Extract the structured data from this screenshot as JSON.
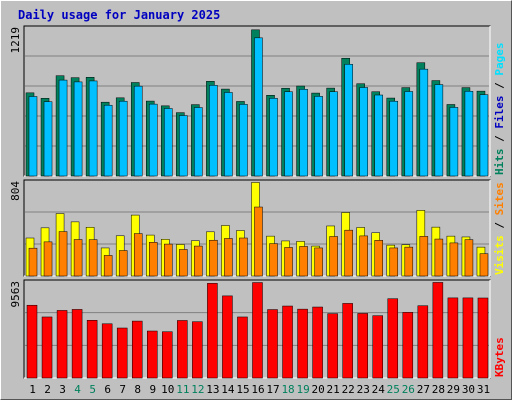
{
  "title": "Daily usage for January 2025",
  "colors": {
    "background": "#c0c0c0",
    "hits": "#00805c",
    "files": "#00c0ff",
    "pages": "#00e0ff",
    "visits": "#ffff00",
    "sites": "#ff8000",
    "kbytes": "#ff0000",
    "weekday_label": "#000000",
    "weekend_label": "#00805c"
  },
  "chart_data": [
    {
      "type": "bar",
      "panel": "hits-files-pages",
      "ymax_label": "1219",
      "ylim": [
        0,
        1219
      ],
      "right_labels": [
        {
          "text": "Hits",
          "color": "#00805c"
        },
        {
          "text": "/",
          "color": "#000000"
        },
        {
          "text": "Files",
          "color": "#0000c0"
        },
        {
          "text": "/",
          "color": "#000000"
        },
        {
          "text": "Pages",
          "color": "#00e0ff"
        }
      ],
      "categories": [
        "1",
        "2",
        "3",
        "4",
        "5",
        "6",
        "7",
        "8",
        "9",
        "10",
        "11",
        "12",
        "13",
        "14",
        "15",
        "16",
        "17",
        "18",
        "19",
        "20",
        "21",
        "22",
        "23",
        "24",
        "25",
        "26",
        "27",
        "28",
        "29",
        "30",
        "31"
      ],
      "series": [
        {
          "name": "Hits",
          "values": [
            685,
            640,
            826,
            810,
            813,
            608,
            644,
            770,
            617,
            578,
            522,
            588,
            780,
            716,
            614,
            1204,
            665,
            723,
            741,
            683,
            724,
            970,
            760,
            694,
            642,
            728,
            933,
            786,
            589,
            728,
            699
          ]
        },
        {
          "name": "Files",
          "values": [
            655,
            612,
            790,
            775,
            783,
            583,
            616,
            740,
            592,
            556,
            498,
            564,
            747,
            688,
            590,
            1138,
            640,
            694,
            714,
            656,
            694,
            920,
            729,
            667,
            616,
            696,
            880,
            753,
            565,
            698,
            670
          ]
        },
        {
          "name": "Pages",
          "values": [
            655,
            612,
            790,
            775,
            783,
            583,
            616,
            740,
            592,
            556,
            498,
            564,
            747,
            688,
            590,
            1138,
            640,
            694,
            714,
            656,
            694,
            920,
            729,
            667,
            616,
            696,
            880,
            753,
            565,
            698,
            670
          ]
        }
      ]
    },
    {
      "type": "bar",
      "panel": "visits-sites",
      "ymax_label": "804",
      "ylim": [
        0,
        804
      ],
      "right_labels": [
        {
          "text": "Visits",
          "color": "#ffff00"
        },
        {
          "text": "/",
          "color": "#000000"
        },
        {
          "text": "Sites",
          "color": "#ff8000"
        }
      ],
      "series": [
        {
          "name": "Visits",
          "values": [
            325,
            412,
            534,
            463,
            417,
            240,
            344,
            521,
            350,
            314,
            270,
            302,
            378,
            432,
            389,
            800,
            341,
            300,
            296,
            256,
            428,
            543,
            415,
            370,
            264,
            267,
            561,
            418,
            341,
            334,
            247
          ]
        },
        {
          "name": "Sites",
          "values": [
            238,
            292,
            380,
            312,
            311,
            176,
            218,
            363,
            288,
            273,
            227,
            256,
            306,
            321,
            325,
            590,
            277,
            244,
            253,
            240,
            338,
            392,
            343,
            305,
            240,
            247,
            339,
            316,
            283,
            311,
            191
          ]
        }
      ]
    },
    {
      "type": "bar",
      "panel": "kbytes",
      "ymax_label": "9563",
      "ylim": [
        0,
        9563
      ],
      "right_labels": [
        {
          "text": "KBytes",
          "color": "#ff0000"
        }
      ],
      "series": [
        {
          "name": "KBytes",
          "values": [
            7250,
            6080,
            6730,
            6830,
            5750,
            5400,
            4980,
            5670,
            4680,
            4610,
            5730,
            5610,
            9430,
            8180,
            6080,
            9510,
            6820,
            7170,
            6860,
            7070,
            6410,
            7430,
            6430,
            6210,
            7900,
            6540,
            7200,
            9520,
            7980,
            7980,
            7970
          ]
        }
      ]
    }
  ]
}
